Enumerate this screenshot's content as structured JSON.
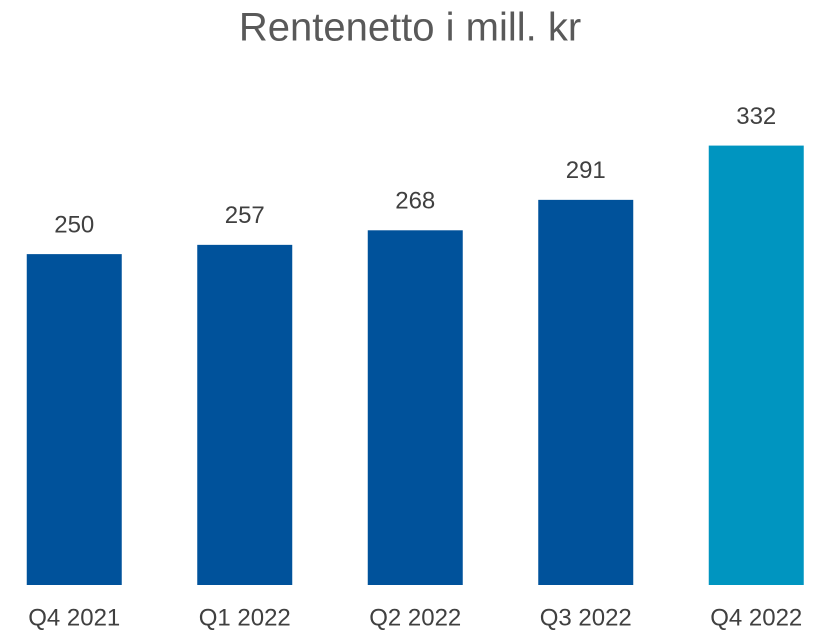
{
  "chart_data": {
    "type": "bar",
    "title": "Rentenetto i mill. kr",
    "categories": [
      "Q4 2021",
      "Q1 2022",
      "Q2 2022",
      "Q3 2022",
      "Q4 2022"
    ],
    "values": [
      250,
      257,
      268,
      291,
      332
    ],
    "colors": [
      "#00529b",
      "#00529b",
      "#00529b",
      "#00529b",
      "#0095c0"
    ],
    "ylim": [
      0,
      340
    ]
  }
}
